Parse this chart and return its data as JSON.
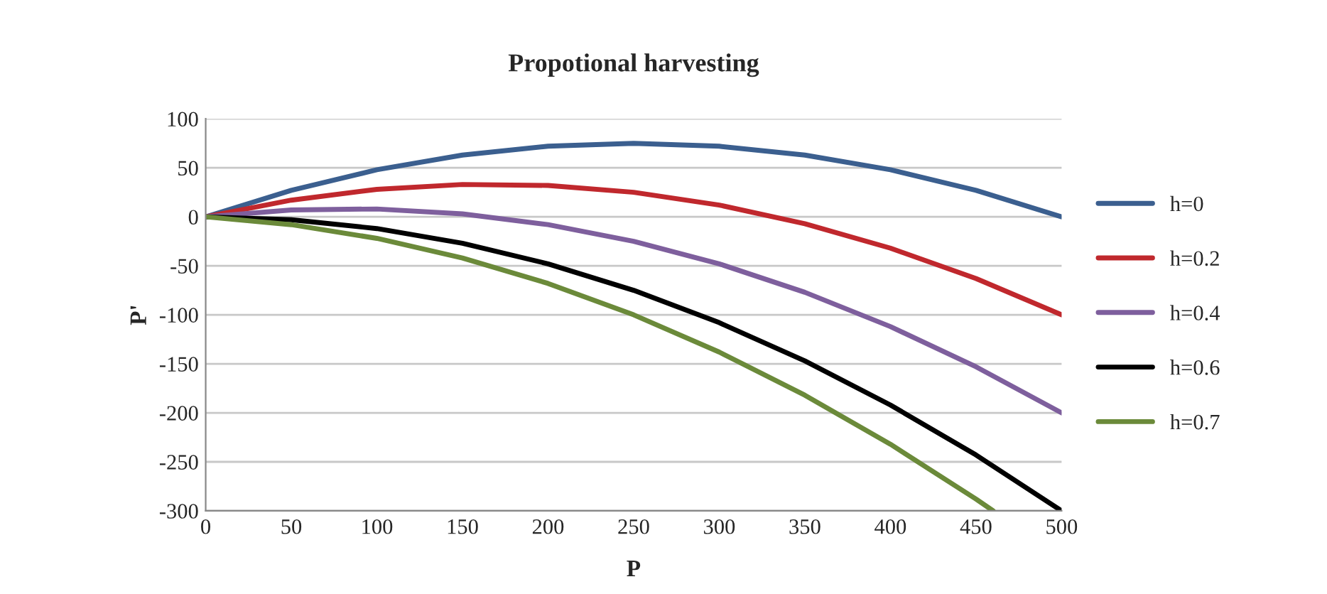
{
  "chart_data": {
    "type": "line",
    "title": "Propotional harvesting",
    "xlabel": "P",
    "ylabel": "P'",
    "x": [
      0,
      50,
      100,
      150,
      200,
      250,
      300,
      350,
      400,
      450,
      500
    ],
    "xlim": [
      0,
      500
    ],
    "xticks": [
      0,
      50,
      100,
      150,
      200,
      250,
      300,
      350,
      400,
      450,
      500
    ],
    "ylim": [
      -300,
      100
    ],
    "yticks": [
      -300,
      -250,
      -200,
      -150,
      -100,
      -50,
      0,
      50,
      100
    ],
    "grid": "y",
    "legend": "right",
    "marker": "none",
    "line_style": "solid",
    "series": [
      {
        "name": "h=0",
        "color": "#3b5f8f",
        "values": [
          0,
          27,
          48,
          63,
          72,
          75,
          72,
          63,
          48,
          27,
          0
        ]
      },
      {
        "name": "h=0.2",
        "color": "#c0282d",
        "values": [
          0,
          17,
          28,
          33,
          32,
          25,
          12,
          -7,
          -32,
          -63,
          -100
        ]
      },
      {
        "name": "h=0.4",
        "color": "#7e5f9d",
        "values": [
          0,
          7,
          8,
          3,
          -8,
          -25,
          -48,
          -77,
          -112,
          -153,
          -200
        ]
      },
      {
        "name": "h=0.6",
        "color": "#000000",
        "values": [
          0,
          -3,
          -12,
          -27,
          -48,
          -75,
          -108,
          -147,
          -192,
          -243,
          -300
        ]
      },
      {
        "name": "h=0.7",
        "color": "#6b8a3a",
        "x": [
          0,
          50,
          100,
          150,
          200,
          250,
          300,
          350,
          400,
          450,
          460
        ],
        "values": [
          0,
          -8,
          -22,
          -42,
          -68,
          -100,
          -138,
          -182,
          -232,
          -288,
          -300
        ]
      }
    ]
  }
}
